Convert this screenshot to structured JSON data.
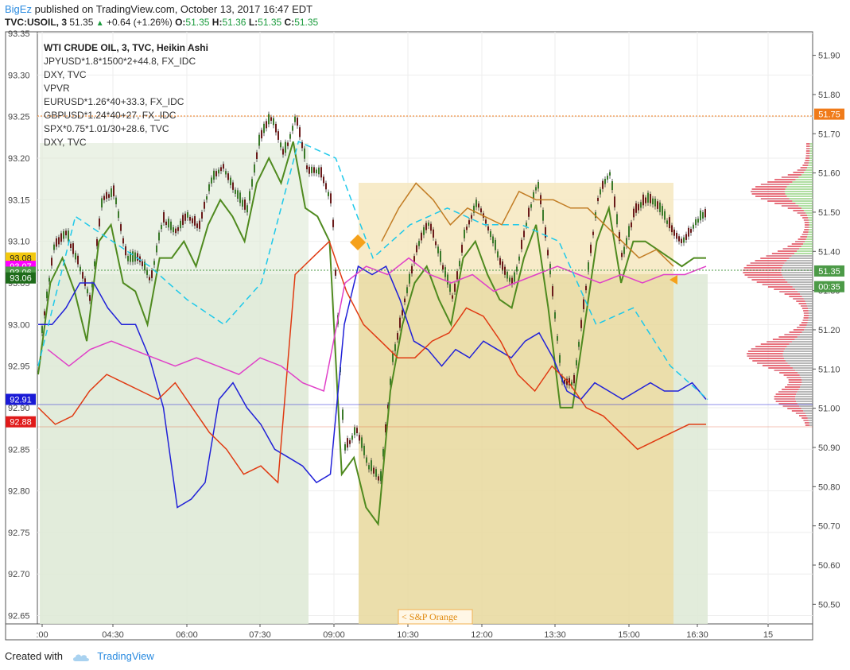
{
  "header": {
    "user": "BigEz",
    "published": "published on TradingView.com, October 13, 2017 16:47 EDT",
    "symbol": "TVC:USOIL, 3",
    "price": "51.35",
    "change": "+0.64 (+1.26%)",
    "o_label": "O:",
    "o_value": "51.35",
    "h_label": "H:",
    "h_value": "51.36",
    "l_label": "L:",
    "l_value": "51.35",
    "c_label": "C:",
    "c_value": "51.35"
  },
  "footer": {
    "created_with": "Created with",
    "brand": "TradingView"
  },
  "legend": [
    "WTI CRUDE OIL, 3, TVC, Heikin Ashi",
    "JPYUSD*1.8*1500*2+44.8, FX_IDC",
    "DXY, TVC",
    "VPVR",
    "EURUSD*1.26*40+33.3, FX_IDC",
    "GBPUSD*1.24*40+27, FX_IDC",
    "SPX*0.75*1.01/30+28.6, TVC",
    "DXY, TVC"
  ],
  "annotation": "< S&P Orange",
  "chart_data": {
    "type": "line",
    "title": "WTI CRUDE OIL, 3, TVC, Heikin Ashi",
    "x_ticks": [
      ":00",
      "04:30",
      "06:00",
      "07:30",
      "09:00",
      "10:30",
      "12:00",
      "13:30",
      "15:00",
      "16:30",
      "15"
    ],
    "right_axis": {
      "ticks": [
        "51.90",
        "51.80",
        "51.70",
        "51.60",
        "51.50",
        "51.40",
        "51.30",
        "51.20",
        "51.10",
        "51.00",
        "50.90",
        "50.80",
        "50.70",
        "50.60",
        "50.50"
      ],
      "range": [
        50.45,
        51.96
      ]
    },
    "left_axis": {
      "ticks": [
        "93.35",
        "93.30",
        "93.25",
        "93.20",
        "93.15",
        "93.10",
        "93.05",
        "93.00",
        "92.95",
        "92.90",
        "92.85",
        "92.80",
        "92.75",
        "92.70",
        "92.65"
      ],
      "range": [
        92.64,
        93.352
      ]
    },
    "price_badges": [
      {
        "text": "51.75",
        "axis": "right",
        "value": 51.75,
        "color": "#f07b1a"
      },
      {
        "text": "51.35",
        "axis": "right",
        "value": 51.35,
        "color": "#4c9a47"
      },
      {
        "text": "00:35",
        "axis": "right",
        "value": 51.31,
        "color": "#4c9a47"
      },
      {
        "text": "93.08",
        "axis": "left",
        "value": 93.08,
        "color": "#f2c80f"
      },
      {
        "text": "93.07",
        "axis": "left",
        "value": 93.07,
        "color": "#ff00ff"
      },
      {
        "text": "93.06",
        "axis": "left",
        "value": 93.063,
        "color": "#4c9a47"
      },
      {
        "text": "93.06",
        "axis": "left",
        "value": 93.056,
        "color": "#1e6b1a"
      },
      {
        "text": "92.91",
        "axis": "left",
        "value": 92.91,
        "color": "#1a1ad6"
      },
      {
        "text": "92.88",
        "axis": "left",
        "value": 92.883,
        "color": "#e01a1a"
      }
    ],
    "series": [
      {
        "color": "#4f8a1f",
        "axis": "left",
        "values": [
          92.94,
          93.05,
          93.08,
          93.04,
          92.98,
          93.1,
          93.12,
          93.05,
          93.04,
          93.0,
          93.08,
          93.08,
          93.1,
          93.07,
          93.12,
          93.15,
          93.13,
          93.1,
          93.17,
          93.2,
          93.17,
          93.22,
          93.14,
          93.13,
          93.1,
          92.82,
          92.84,
          92.78,
          92.76,
          92.92,
          93.0,
          93.05,
          93.07,
          93.03,
          93.0,
          93.08,
          93.1,
          93.06,
          93.03,
          93.02,
          93.08,
          93.12,
          93.02,
          92.9,
          92.9,
          93.0,
          93.1,
          93.14,
          93.05,
          93.1,
          93.1,
          93.09,
          93.08,
          93.07,
          93.08,
          93.08
        ]
      },
      {
        "color": "#2121d8",
        "axis": "left",
        "values": [
          93.0,
          93.0,
          93.02,
          93.05,
          93.05,
          93.02,
          93.0,
          93.0,
          92.96,
          92.9,
          92.78,
          92.79,
          92.81,
          92.91,
          92.93,
          92.9,
          92.88,
          92.85,
          92.84,
          92.83,
          92.81,
          92.82,
          93.0,
          93.07,
          93.06,
          93.07,
          93.03,
          92.98,
          92.97,
          92.95,
          92.97,
          92.96,
          92.98,
          92.97,
          92.96,
          92.98,
          92.99,
          92.96,
          92.92,
          92.91,
          92.93,
          92.92,
          92.91,
          92.92,
          92.93,
          92.92,
          92.92,
          92.93,
          92.91
        ]
      },
      {
        "color": "#e03a12",
        "axis": "left",
        "values": [
          92.9,
          92.88,
          92.89,
          92.92,
          92.94,
          92.93,
          92.92,
          92.91,
          92.93,
          92.9,
          92.87,
          92.85,
          92.82,
          92.83,
          92.81,
          93.06,
          93.08,
          93.1,
          93.04,
          93.0,
          92.98,
          92.96,
          92.96,
          92.98,
          92.99,
          93.02,
          93.01,
          92.98,
          92.94,
          92.92,
          92.95,
          92.93,
          92.9,
          92.89,
          92.87,
          92.85,
          92.86,
          92.87,
          92.88,
          92.88
        ]
      },
      {
        "color": "#e040c8",
        "axis": "left",
        "values": [
          92.97,
          92.95,
          92.97,
          92.98,
          92.97,
          92.96,
          92.95,
          92.96,
          92.95,
          92.94,
          92.96,
          92.95,
          92.93,
          92.92,
          93.05,
          93.07,
          93.06,
          93.08,
          93.06,
          93.05,
          93.06,
          93.04,
          93.05,
          93.06,
          93.07,
          93.06,
          93.05,
          93.06,
          93.05,
          93.06,
          93.06,
          93.07
        ]
      },
      {
        "color": "#c27d25",
        "axis": "left",
        "values": [
          93.1,
          93.14,
          93.17,
          93.15,
          93.12,
          93.14,
          93.13,
          93.12,
          93.16,
          93.15,
          93.15,
          93.14,
          93.14,
          93.12,
          93.1,
          93.08,
          93.09,
          93.07
        ]
      },
      {
        "color": "#1ec9ea",
        "axis": "left",
        "dashed": true,
        "values": [
          92.95,
          93.13,
          93.1,
          93.07,
          93.03,
          93.0,
          93.05,
          93.22,
          93.2,
          93.08,
          93.12,
          93.14,
          93.12,
          93.12,
          93.1,
          93.0,
          93.02,
          92.95,
          92.91
        ]
      }
    ]
  }
}
